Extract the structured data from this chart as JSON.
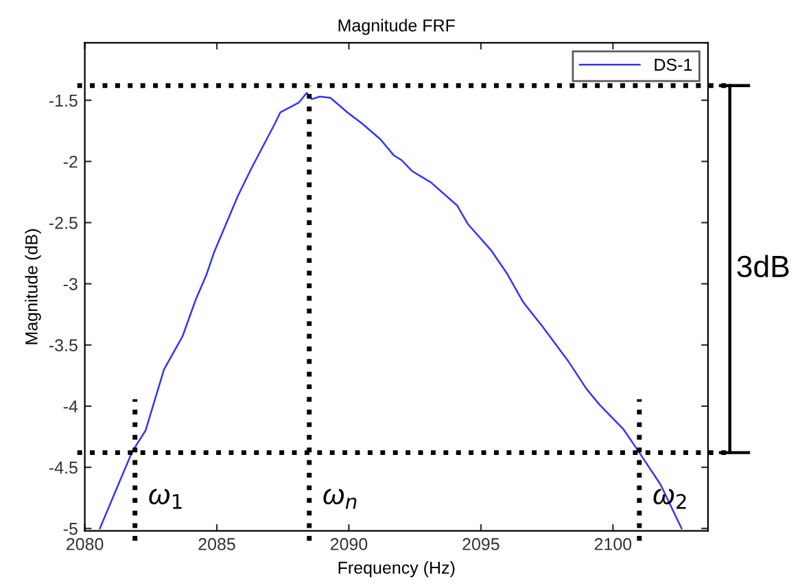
{
  "chart_data": {
    "type": "line",
    "title": "Magnitude FRF",
    "xlabel": "Frequency (Hz)",
    "ylabel": "Magnitude (dB)",
    "xlim": [
      2080,
      2103.6
    ],
    "xticks": [
      2080,
      2085,
      2090,
      2095,
      2100
    ],
    "ylim": [
      -5.02,
      -1.03
    ],
    "yticks": [
      -5,
      -4.5,
      -4,
      -3.5,
      -3,
      -2.5,
      -2,
      -1.5
    ],
    "grid": false,
    "legend": "top right",
    "line_style": "solid",
    "marker": "none",
    "series": [
      {
        "name": "DS-1",
        "color": "#3333ff",
        "x": [
          2080.57,
          2081.8,
          2082.3,
          2083.0,
          2083.7,
          2084.2,
          2084.6,
          2084.9,
          2085.8,
          2086.3,
          2087.2,
          2087.4,
          2088.1,
          2088.4,
          2088.6,
          2088.9,
          2089.3,
          2089.95,
          2090.5,
          2091.2,
          2091.7,
          2092.0,
          2092.4,
          2093.1,
          2094.1,
          2094.5,
          2095.4,
          2096.0,
          2096.6,
          2097.3,
          2098.3,
          2099.0,
          2099.5,
          2100.4,
          2101.0,
          2101.8,
          2102.6
        ],
        "values": [
          -5.0,
          -4.37,
          -4.2,
          -3.7,
          -3.43,
          -3.13,
          -2.93,
          -2.74,
          -2.28,
          -2.06,
          -1.69,
          -1.6,
          -1.52,
          -1.44,
          -1.49,
          -1.47,
          -1.48,
          -1.6,
          -1.69,
          -1.82,
          -1.95,
          -1.99,
          -2.08,
          -2.17,
          -2.36,
          -2.51,
          -2.73,
          -2.92,
          -3.15,
          -3.34,
          -3.63,
          -3.86,
          -3.99,
          -4.19,
          -4.38,
          -4.64,
          -5.0
        ]
      }
    ],
    "ref_lines": [
      {
        "axis": "y",
        "value": -1.38,
        "color": "#000000",
        "line_style": "dotted"
      },
      {
        "axis": "y",
        "value": -4.38,
        "color": "#000000",
        "line_style": "dotted"
      },
      {
        "axis": "x",
        "value": 2081.9,
        "label": "ω$_{1}$",
        "color": "#000000",
        "line_style": "dotted"
      },
      {
        "axis": "x",
        "value": 2088.5,
        "label": "ω$_{n}$",
        "color": "#000000",
        "line_style": "dotted"
      },
      {
        "axis": "x",
        "value": 2101.0,
        "label": "ω$_{2}$",
        "color": "#000000",
        "line_style": "dotted"
      }
    ],
    "annotations": [
      "3dB"
    ]
  }
}
